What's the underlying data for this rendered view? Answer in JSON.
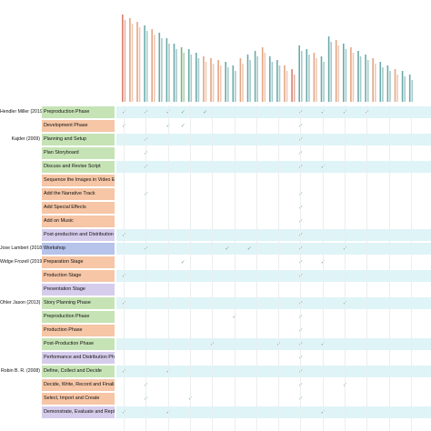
{
  "colors": {
    "band_cyan": "#dff4f7",
    "phase_green": "#c6e3b5",
    "phase_orange": "#f6c6a6",
    "phase_purple": "#d6cdec",
    "phase_blue": "#b6c3ea",
    "header_orange": "#d9875a",
    "header_teal": "#3a8c8c",
    "header_red": "#c9543e",
    "header_green": "#4f9a50",
    "check": "#7a9a8a"
  },
  "check_glyph": "✓",
  "columns": [
    {
      "color": "red"
    },
    {
      "color": "orange"
    },
    {
      "color": "orange"
    },
    {
      "color": "teal"
    },
    {
      "color": "orange"
    },
    {
      "color": "teal"
    },
    {
      "color": "teal"
    },
    {
      "color": "teal"
    },
    {
      "color": "green"
    },
    {
      "color": "teal"
    },
    {
      "color": "teal"
    },
    {
      "color": "orange"
    },
    {
      "color": "orange"
    },
    {
      "color": "orange"
    },
    {
      "color": "teal"
    },
    {
      "color": "teal"
    },
    {
      "color": "orange"
    },
    {
      "color": "teal"
    },
    {
      "color": "teal"
    },
    {
      "color": "orange"
    },
    {
      "color": "teal"
    },
    {
      "color": "teal"
    },
    {
      "color": "orange"
    },
    {
      "color": "red"
    },
    {
      "color": "teal"
    },
    {
      "color": "teal"
    },
    {
      "color": "orange"
    },
    {
      "color": "teal"
    },
    {
      "color": "teal"
    },
    {
      "color": "orange"
    },
    {
      "color": "teal"
    },
    {
      "color": "orange"
    },
    {
      "color": "teal"
    },
    {
      "color": "teal"
    },
    {
      "color": "orange"
    },
    {
      "color": "teal"
    },
    {
      "color": "teal"
    },
    {
      "color": "orange"
    },
    {
      "color": "teal"
    },
    {
      "color": "teal"
    }
  ],
  "rows": [
    {
      "author": "Hendler Miller (2019)",
      "phase": "Preproduction Phase",
      "color": "green",
      "band": true,
      "checks": [
        0,
        3,
        6,
        8,
        11,
        24,
        27,
        30,
        33
      ]
    },
    {
      "author": "",
      "phase": "Development Phase",
      "color": "orange",
      "band": false,
      "checks": [
        0,
        6,
        8,
        24
      ]
    },
    {
      "author": "Kajder (2009)",
      "phase": "Planning and Setup",
      "color": "green",
      "band": true,
      "checks": [
        3,
        24
      ]
    },
    {
      "author": "",
      "phase": "Plan Storyboard",
      "color": "green",
      "band": false,
      "checks": [
        3,
        24
      ]
    },
    {
      "author": "",
      "phase": "Discuss and Revise Script",
      "color": "green",
      "band": true,
      "checks": [
        3,
        24,
        27
      ]
    },
    {
      "author": "",
      "phase": "Sequence the Images in Video Editing Software",
      "color": "orange",
      "band": false,
      "checks": []
    },
    {
      "author": "",
      "phase": "Add the Narrative Track",
      "color": "orange",
      "band": false,
      "checks": [
        3,
        24
      ]
    },
    {
      "author": "",
      "phase": "Add Special Effects",
      "color": "orange",
      "band": false,
      "checks": [
        24
      ]
    },
    {
      "author": "",
      "phase": "Add on Music",
      "color": "orange",
      "band": false,
      "checks": [
        24
      ]
    },
    {
      "author": "",
      "phase": "Post-production and Distribution",
      "color": "purple",
      "band": true,
      "checks": [
        0,
        24
      ]
    },
    {
      "author": "Jose Lambert (2018)",
      "phase": "Workshop",
      "color": "blue",
      "band": true,
      "checks": [
        3,
        14,
        17,
        24,
        30
      ]
    },
    {
      "author": "Widge Frozell (2019)",
      "phase": "Preparation Stage",
      "color": "orange",
      "band": false,
      "checks": [
        8,
        24,
        27
      ]
    },
    {
      "author": "",
      "phase": "Production Stage",
      "color": "orange",
      "band": true,
      "checks": [
        0,
        24
      ]
    },
    {
      "author": "",
      "phase": "Presentation Stage",
      "color": "purple",
      "band": false,
      "checks": []
    },
    {
      "author": "Ohler Jason (2013)",
      "phase": "Story Planning Phase",
      "color": "green",
      "band": true,
      "checks": [
        0,
        24,
        30
      ]
    },
    {
      "author": "",
      "phase": "Preproduction Phase",
      "color": "green",
      "band": false,
      "checks": [
        15,
        24
      ]
    },
    {
      "author": "",
      "phase": "Production Phase",
      "color": "orange",
      "band": false,
      "checks": [
        24
      ]
    },
    {
      "author": "",
      "phase": "Post-Production Phase",
      "color": "green",
      "band": true,
      "checks": [
        12,
        21,
        24,
        27
      ]
    },
    {
      "author": "",
      "phase": "Performance and Distribution Phase",
      "color": "purple",
      "band": false,
      "checks": [
        24
      ]
    },
    {
      "author": "Robin B. R. (2008)",
      "phase": "Define, Collect and Decide",
      "color": "green",
      "band": true,
      "checks": [
        0,
        6,
        24
      ]
    },
    {
      "author": "",
      "phase": "Decide, Write, Record and Finalize",
      "color": "orange",
      "band": false,
      "checks": [
        3,
        24,
        30
      ]
    },
    {
      "author": "",
      "phase": "Select, Import and Create",
      "color": "orange",
      "band": false,
      "checks": [
        3,
        9,
        24
      ]
    },
    {
      "author": "",
      "phase": "Demonstrate, Evaluate and Replicate",
      "color": "purple",
      "band": true,
      "checks": [
        0,
        6,
        27
      ]
    }
  ]
}
